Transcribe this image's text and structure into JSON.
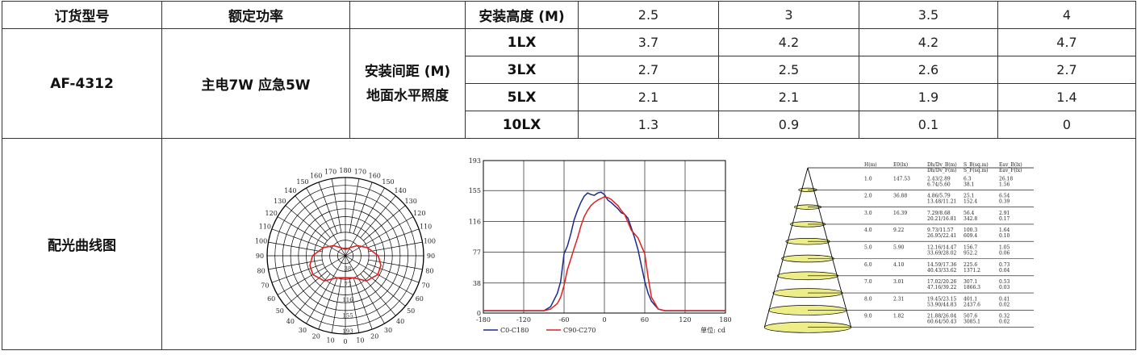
{
  "table": {
    "h_model": "订货型号",
    "h_power": "额定功率",
    "h_height": "安装高度 (M)",
    "heights": [
      "2.5",
      "3",
      "3.5",
      "4"
    ],
    "model": "AF-4312",
    "power": "主电7W 应急5W",
    "spacing_label_1": "安装间距 (M)",
    "spacing_label_2": "地面水平照度",
    "rows": [
      {
        "lux": "1LX",
        "values": [
          "3.7",
          "4.2",
          "4.2",
          "4.7"
        ]
      },
      {
        "lux": "3LX",
        "values": [
          "2.7",
          "2.5",
          "2.6",
          "2.7"
        ]
      },
      {
        "lux": "5LX",
        "values": [
          "2.1",
          "2.1",
          "1.9",
          "1.4"
        ]
      },
      {
        "lux": "10LX",
        "values": [
          "1.3",
          "0.9",
          "0.1",
          "0"
        ]
      }
    ],
    "curve_label": "配光曲线图"
  },
  "polar": {
    "angle_labels": [
      "180",
      "170",
      "160",
      "150",
      "140",
      "130",
      "120",
      "110",
      "100",
      "90",
      "80",
      "70",
      "60",
      "50",
      "40",
      "30",
      "20",
      "10",
      "0"
    ],
    "radial_labels": [
      "38",
      "77",
      "116",
      "155",
      "193"
    ],
    "curve_color": "#e0201e"
  },
  "chart_data": {
    "type": "line",
    "x_ticks": [
      "-180",
      "-120",
      "-60",
      "0",
      "60",
      "120",
      "180"
    ],
    "y_ticks": [
      "0",
      "38",
      "77",
      "116",
      "155",
      "193"
    ],
    "xlim": [
      -180,
      180
    ],
    "ylim": [
      0,
      193
    ],
    "unit_label": "单位: cd",
    "series": [
      {
        "name": "C0-C180",
        "color": "#1c2a8c",
        "x": [
          -180,
          -90,
          -80,
          -70,
          -65,
          -60,
          -55,
          -50,
          -45,
          -40,
          -35,
          -30,
          -25,
          -20,
          -15,
          -10,
          -5,
          0,
          5,
          10,
          15,
          20,
          25,
          30,
          35,
          40,
          45,
          50,
          55,
          60,
          65,
          70,
          80,
          90,
          180
        ],
        "y": [
          3,
          3,
          8,
          25,
          40,
          75,
          85,
          100,
          118,
          130,
          140,
          148,
          152,
          150,
          149,
          152,
          153,
          150,
          143,
          140,
          136,
          132,
          127,
          125,
          120,
          108,
          95,
          80,
          60,
          40,
          25,
          15,
          5,
          3,
          3
        ]
      },
      {
        "name": "C90-C270",
        "color": "#e0201e",
        "x": [
          -180,
          -90,
          -80,
          -70,
          -65,
          -60,
          -55,
          -50,
          -45,
          -40,
          -35,
          -30,
          -25,
          -20,
          -15,
          -10,
          -5,
          0,
          5,
          10,
          15,
          20,
          25,
          30,
          35,
          40,
          45,
          50,
          55,
          60,
          65,
          70,
          80,
          90,
          180
        ],
        "y": [
          3,
          3,
          5,
          12,
          20,
          35,
          55,
          68,
          82,
          95,
          110,
          122,
          130,
          136,
          140,
          143,
          145,
          147,
          146,
          144,
          140,
          136,
          130,
          125,
          115,
          105,
          100,
          95,
          85,
          75,
          45,
          20,
          5,
          3,
          3
        ]
      }
    ]
  },
  "cone": {
    "headers": [
      {
        "l1": "H(m)",
        "l2": ""
      },
      {
        "l1": "E0(lx)",
        "l2": ""
      },
      {
        "l1": "Dh/Dv_B(m)",
        "l2": "Dh/Dv_F(m)"
      },
      {
        "l1": "S_B(sq.m)",
        "l2": "S_F(sq.m)"
      },
      {
        "l1": "Eav_B(lx)",
        "l2": "Eav_F(lx)"
      }
    ],
    "rows": [
      {
        "h": "1.0",
        "e0": "147.53",
        "dB": "2.43/2.89",
        "dF": "6.74/5.60",
        "sB": "6.3",
        "sF": "38.1",
        "eB": "26.18",
        "eF": "1.56"
      },
      {
        "h": "2.0",
        "e0": "36.88",
        "dB": "4.86/5.79",
        "dF": "13.48/11.21",
        "sB": "25.1",
        "sF": "152.4",
        "eB": "6.54",
        "eF": "0.39"
      },
      {
        "h": "3.0",
        "e0": "16.39",
        "dB": "7.29/8.68",
        "dF": "20.21/16.81",
        "sB": "56.4",
        "sF": "342.8",
        "eB": "2.91",
        "eF": "0.17"
      },
      {
        "h": "4.0",
        "e0": "9.22",
        "dB": "9.73/11.57",
        "dF": "26.95/22.41",
        "sB": "100.3",
        "sF": "609.4",
        "eB": "1.64",
        "eF": "0.10"
      },
      {
        "h": "5.0",
        "e0": "5.90",
        "dB": "12.16/14.47",
        "dF": "33.69/28.02",
        "sB": "156.7",
        "sF": "952.2",
        "eB": "1.05",
        "eF": "0.06"
      },
      {
        "h": "6.0",
        "e0": "4.10",
        "dB": "14.59/17.36",
        "dF": "40.43/33.62",
        "sB": "225.6",
        "sF": "1371.2",
        "eB": "0.73",
        "eF": "0.04"
      },
      {
        "h": "7.0",
        "e0": "3.01",
        "dB": "17.02/20.26",
        "dF": "47.16/39.22",
        "sB": "307.1",
        "sF": "1866.3",
        "eB": "0.53",
        "eF": "0.03"
      },
      {
        "h": "8.0",
        "e0": "2.31",
        "dB": "19.45/23.15",
        "dF": "53.90/44.83",
        "sB": "401.1",
        "sF": "2437.6",
        "eB": "0.41",
        "eF": "0.02"
      },
      {
        "h": "9.0",
        "e0": "1.82",
        "dB": "21.88/26.04",
        "dF": "60.64/50.43",
        "sB": "507.6",
        "sF": "3085.1",
        "eB": "0.32",
        "eF": "0.02"
      }
    ],
    "ellipse_color": "#eeee88"
  }
}
